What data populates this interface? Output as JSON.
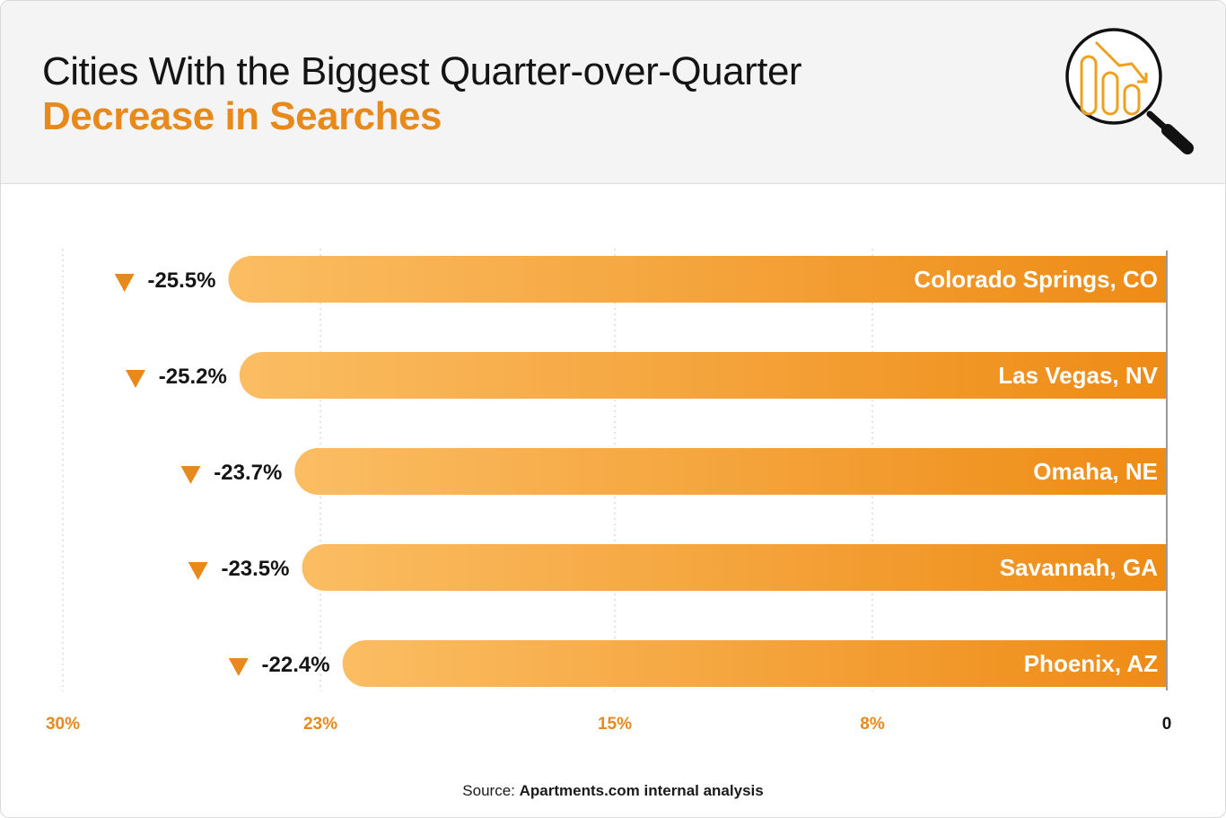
{
  "header": {
    "title_line1": "Cities With the Biggest Quarter-over-Quarter",
    "title_line2": "Decrease in Searches",
    "icon": "magnifier-declining-bar-chart-icon"
  },
  "source": {
    "prefix": "Source:",
    "name": "Apartments.com internal analysis"
  },
  "colors": {
    "accent": "#e8891c",
    "bar_gradient_start": "#fbbd63",
    "bar_gradient_end": "#ee8b15",
    "down_arrow": "#e8891c",
    "text_dark": "#141414"
  },
  "chart_data": {
    "type": "bar",
    "orientation": "horizontal",
    "categories": [
      "Colorado Springs, CO",
      "Las Vegas, NV",
      "Omaha, NE",
      "Savannah, GA",
      "Phoenix, AZ"
    ],
    "values": [
      -25.5,
      -25.2,
      -23.7,
      -23.5,
      -22.4
    ],
    "value_labels": [
      "-25.5%",
      "-25.2%",
      "-23.7%",
      "-23.5%",
      "-22.4%"
    ],
    "x_ticks": [
      30,
      23,
      15,
      8,
      0
    ],
    "x_tick_labels": [
      "30%",
      "23%",
      "15%",
      "8%",
      "0"
    ],
    "xlim": [
      30,
      0
    ],
    "x_reversed": true,
    "grid": true,
    "grid_style": "dotted-vertical",
    "legend": "none",
    "marker": "down-triangle"
  }
}
